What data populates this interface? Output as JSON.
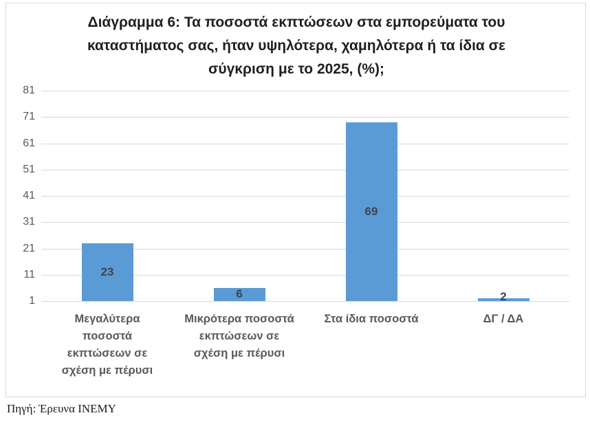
{
  "header": {
    "title": "Διάγραμμα 6: Τα ποσοστά εκπτώσεων στα εμπορεύματα του καταστήματος σας, ήταν υψηλότερα, χαμηλότερα ή τα ίδια σε σύγκριση με το 2025, (%);"
  },
  "footer": {
    "source": "Πηγή: Έρευνα ΙΝΕΜΥ"
  },
  "chart_data": {
    "type": "bar",
    "title": "Διάγραμμα 6: Τα ποσοστά εκπτώσεων στα εμπορεύματα του καταστήματος σας, ήταν υψηλότερα, χαμηλότερα ή τα ίδια σε σύγκριση με το 2025, (%);",
    "categories": [
      "Μεγαλύτερα ποσοστά εκπτώσεων σε σχέση με πέρυσι",
      "Μικρότερα ποσοστά εκπτώσεων σε σχέση με πέρυσι",
      "Στα ίδια ποσοστά",
      "ΔΓ / ΔΑ"
    ],
    "category_lines": [
      [
        "Μεγαλύτερα",
        "ποσοστά",
        "εκπτώσεων σε",
        "σχέση με πέρυσι"
      ],
      [
        "Μικρότερα ποσοστά",
        "εκπτώσεων σε",
        "σχέση με πέρυσι"
      ],
      [
        "Στα ίδια ποσοστά"
      ],
      [
        "ΔΓ / ΔΑ"
      ]
    ],
    "values": [
      23,
      6,
      69,
      2
    ],
    "xlabel": "",
    "ylabel": "",
    "yticks": [
      81,
      71,
      61,
      51,
      41,
      31,
      21,
      11,
      1
    ],
    "ylim": [
      1,
      81
    ],
    "grid": true,
    "legend_position": "none",
    "colors": {
      "bar": "#5B9BD5",
      "data_label": "#3D4450",
      "tick_label": "#595959",
      "gridline": "#D9D9D9",
      "border": "#D9D9D9",
      "title": "#1F1F1F",
      "source_text": "#1A1A1A"
    }
  }
}
